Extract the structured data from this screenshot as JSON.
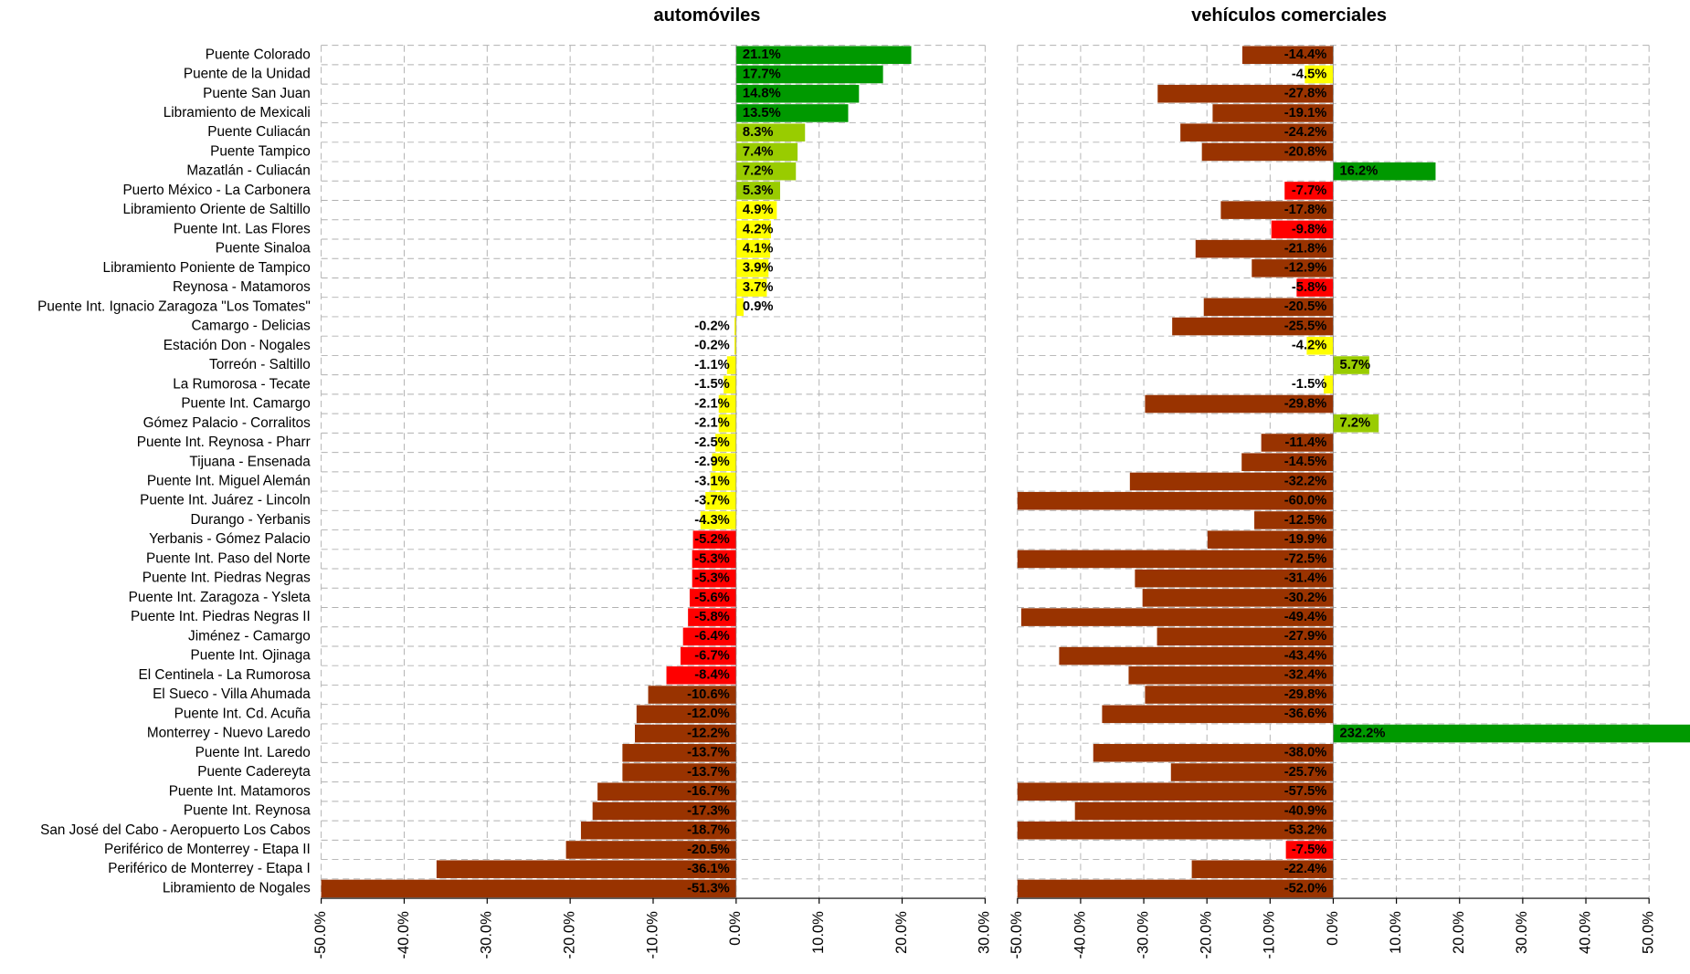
{
  "chart_data": [
    {
      "type": "bar",
      "orientation": "horizontal",
      "title": "automóviles",
      "categories": [
        "Puente Colorado",
        "Puente de la Unidad",
        "Puente San Juan",
        "Libramiento de Mexicali",
        "Puente Culiacán",
        "Puente Tampico",
        "Mazatlán - Culiacán",
        "Puerto México - La Carbonera",
        "Libramiento Oriente de Saltillo",
        "Puente Int. Las Flores",
        "Puente Sinaloa",
        "Libramiento Poniente de Tampico",
        "Reynosa - Matamoros",
        "Puente Int. Ignacio Zaragoza \"Los Tomates\"",
        "Camargo - Delicias",
        "Estación Don - Nogales",
        "Torreón - Saltillo",
        "La Rumorosa - Tecate",
        "Puente Int. Camargo",
        "Gómez Palacio - Corralitos",
        "Puente Int. Reynosa - Pharr",
        "Tijuana - Ensenada",
        "Puente Int. Miguel Alemán",
        "Puente Int. Juárez - Lincoln",
        "Durango - Yerbanis",
        "Yerbanis - Gómez Palacio",
        "Puente Int. Paso del Norte",
        "Puente Int. Piedras Negras",
        "Puente Int. Zaragoza - Ysleta",
        "Puente Int. Piedras Negras II",
        "Jiménez - Camargo",
        "Puente Int. Ojinaga",
        "El Centinela - La Rumorosa",
        "El Sueco - Villa Ahumada",
        "Puente Int. Cd. Acuña",
        "Monterrey - Nuevo Laredo",
        "Puente Int. Laredo",
        "Puente Cadereyta",
        "Puente Int. Matamoros",
        "Puente Int. Reynosa",
        "San José del Cabo - Aeropuerto Los Cabos",
        "Periférico de Monterrey - Etapa II",
        "Periférico de Monterrey - Etapa I",
        "Libramiento de Nogales"
      ],
      "values": [
        21.1,
        17.7,
        14.8,
        13.5,
        8.3,
        7.4,
        7.2,
        5.3,
        4.9,
        4.2,
        4.1,
        3.9,
        3.7,
        0.9,
        -0.2,
        -0.2,
        -1.1,
        -1.5,
        -2.1,
        -2.1,
        -2.5,
        -2.9,
        -3.1,
        -3.7,
        -4.3,
        -5.2,
        -5.3,
        -5.3,
        -5.6,
        -5.8,
        -6.4,
        -6.7,
        -8.4,
        -10.6,
        -12.0,
        -12.2,
        -13.7,
        -13.7,
        -16.7,
        -17.3,
        -18.7,
        -20.5,
        -36.1,
        -51.3
      ],
      "value_labels": [
        "21.1%",
        "17.7%",
        "14.8%",
        "13.5%",
        "8.3%",
        "7.4%",
        "7.2%",
        "5.3%",
        "4.9%",
        "4.2%",
        "4.1%",
        "3.9%",
        "3.7%",
        "0.9%",
        "-0.2%",
        "-0.2%",
        "-1.1%",
        "-1.5%",
        "-2.1%",
        "-2.1%",
        "-2.5%",
        "-2.9%",
        "-3.1%",
        "-3.7%",
        "-4.3%",
        "-5.2%",
        "-5.3%",
        "-5.3%",
        "-5.6%",
        "-5.8%",
        "-6.4%",
        "-6.7%",
        "-8.4%",
        "-10.6%",
        "-12.0%",
        "-12.2%",
        "-13.7%",
        "-13.7%",
        "-16.7%",
        "-17.3%",
        "-18.7%",
        "-20.5%",
        "-36.1%",
        "-51.3%"
      ],
      "colors": [
        "#009900",
        "#009900",
        "#009900",
        "#009900",
        "#99cc00",
        "#99cc00",
        "#99cc00",
        "#99cc00",
        "#ffff00",
        "#ffff00",
        "#ffff00",
        "#ffff00",
        "#ffff00",
        "#ffff00",
        "#ffff00",
        "#ffff00",
        "#ffff00",
        "#ffff00",
        "#ffff00",
        "#ffff00",
        "#ffff00",
        "#ffff00",
        "#ffff00",
        "#ffff00",
        "#ffff00",
        "#ff0000",
        "#ff0000",
        "#ff0000",
        "#ff0000",
        "#ff0000",
        "#ff0000",
        "#ff0000",
        "#ff0000",
        "#993300",
        "#993300",
        "#993300",
        "#993300",
        "#993300",
        "#993300",
        "#993300",
        "#993300",
        "#993300",
        "#993300",
        "#993300"
      ],
      "xlim": [
        -50,
        30
      ],
      "xticks": [
        {
          "value": -50,
          "label": "-50.0%"
        },
        {
          "value": -40,
          "label": "-40.0%"
        },
        {
          "value": -30,
          "label": "-30.0%"
        },
        {
          "value": -20,
          "label": "-20.0%"
        },
        {
          "value": -10,
          "label": "-10.0%"
        },
        {
          "value": 0,
          "label": "0.0%"
        },
        {
          "value": 10,
          "label": "10.0%"
        },
        {
          "value": 20,
          "label": "20.0%"
        },
        {
          "value": 30,
          "label": "30.0%"
        }
      ],
      "grid": true
    },
    {
      "type": "bar",
      "orientation": "horizontal",
      "title": "vehículos comerciales",
      "values": [
        -14.4,
        -4.5,
        -27.8,
        -19.1,
        -24.2,
        -20.8,
        16.2,
        -7.7,
        -17.8,
        -9.8,
        -21.8,
        -12.9,
        -5.8,
        -20.5,
        -25.5,
        -4.2,
        5.7,
        -1.5,
        -29.8,
        7.2,
        -11.4,
        -14.5,
        -32.2,
        -60.0,
        -12.5,
        -19.9,
        -72.5,
        -31.4,
        -30.2,
        -49.4,
        -27.9,
        -43.4,
        -32.4,
        -29.8,
        -36.6,
        232.2,
        -38.0,
        -25.7,
        -57.5,
        -40.9,
        -53.2,
        -7.5,
        -22.4,
        -52.0
      ],
      "value_labels": [
        "-14.4%",
        "-4.5%",
        "-27.8%",
        "-19.1%",
        "-24.2%",
        "-20.8%",
        "16.2%",
        "-7.7%",
        "-17.8%",
        "-9.8%",
        "-21.8%",
        "-12.9%",
        "-5.8%",
        "-20.5%",
        "-25.5%",
        "-4.2%",
        "5.7%",
        "-1.5%",
        "-29.8%",
        "7.2%",
        "-11.4%",
        "-14.5%",
        "-32.2%",
        "-60.0%",
        "-12.5%",
        "-19.9%",
        "-72.5%",
        "-31.4%",
        "-30.2%",
        "-49.4%",
        "-27.9%",
        "-43.4%",
        "-32.4%",
        "-29.8%",
        "-36.6%",
        "232.2%",
        "-38.0%",
        "-25.7%",
        "-57.5%",
        "-40.9%",
        "-53.2%",
        "-7.5%",
        "-22.4%",
        "-52.0%"
      ],
      "colors": [
        "#993300",
        "#ffff00",
        "#993300",
        "#993300",
        "#993300",
        "#993300",
        "#009900",
        "#ff0000",
        "#993300",
        "#ff0000",
        "#993300",
        "#993300",
        "#ff0000",
        "#993300",
        "#993300",
        "#ffff00",
        "#99cc00",
        "#ffff00",
        "#993300",
        "#99cc00",
        "#993300",
        "#993300",
        "#993300",
        "#993300",
        "#993300",
        "#993300",
        "#993300",
        "#993300",
        "#993300",
        "#993300",
        "#993300",
        "#993300",
        "#993300",
        "#993300",
        "#993300",
        "#009900",
        "#993300",
        "#993300",
        "#993300",
        "#993300",
        "#993300",
        "#ff0000",
        "#993300",
        "#993300"
      ],
      "xlim": [
        -50,
        50
      ],
      "xticks": [
        {
          "value": -50,
          "label": "-50.0%"
        },
        {
          "value": -40,
          "label": "-40.0%"
        },
        {
          "value": -30,
          "label": "-30.0%"
        },
        {
          "value": -20,
          "label": "-20.0%"
        },
        {
          "value": -10,
          "label": "-10.0%"
        },
        {
          "value": 0,
          "label": "0.0%"
        },
        {
          "value": 10,
          "label": "10.0%"
        },
        {
          "value": 20,
          "label": "20.0%"
        },
        {
          "value": 30,
          "label": "30.0%"
        },
        {
          "value": 40,
          "label": "40.0%"
        },
        {
          "value": 50,
          "label": "50.0%"
        }
      ],
      "grid": true
    }
  ]
}
